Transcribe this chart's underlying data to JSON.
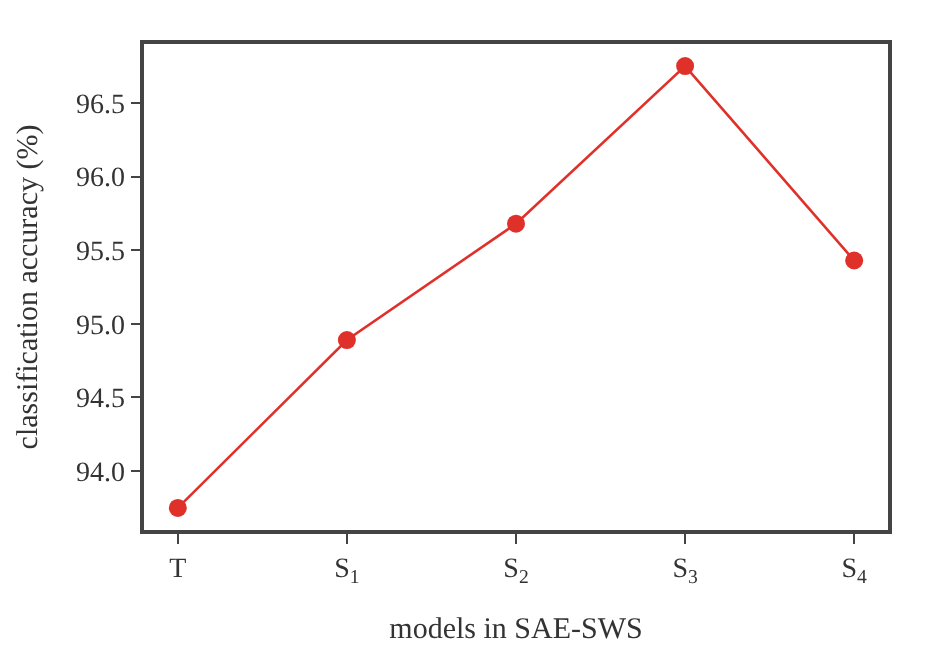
{
  "chart_data": {
    "type": "line",
    "xlabel": "models in SAE-SWS",
    "ylabel": "classification accuracy (%)",
    "categories": [
      "T",
      "S$_{1}$",
      "S$_{2}$",
      "S$_{3}$",
      "S$_{4}$"
    ],
    "series": [
      {
        "color": "#e0302a",
        "values": [
          93.75,
          94.89,
          95.68,
          96.75,
          95.43
        ]
      }
    ],
    "ylim": [
      93.6,
      96.9
    ],
    "yticks": [
      {
        "value": 94.0,
        "label": "94.0"
      },
      {
        "value": 94.5,
        "label": "94.5"
      },
      {
        "value": 95.0,
        "label": "95.0"
      },
      {
        "value": 95.5,
        "label": "95.5"
      },
      {
        "value": 96.0,
        "label": "96.0"
      },
      {
        "value": 96.5,
        "label": "96.5"
      }
    ],
    "marker": "circle",
    "line_style": "solid"
  }
}
